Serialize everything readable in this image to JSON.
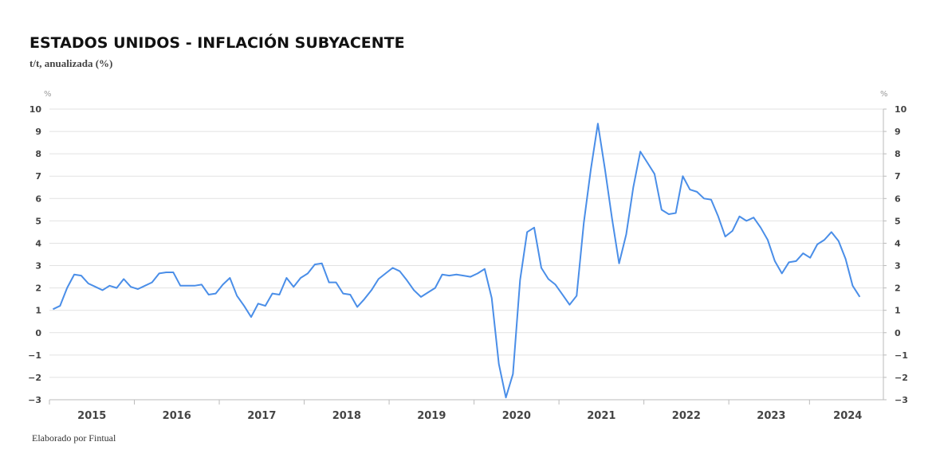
{
  "chart_data": {
    "type": "line",
    "title": "ESTADOS UNIDOS - INFLACIÓN SUBYACENTE",
    "subtitle": "t/t, anualizada (%)",
    "source": "Elaborado por Fintual",
    "ylabel": "%",
    "y2label": "%",
    "xlim": [
      2015,
      2024.82
    ],
    "xticks": [
      {
        "value": 2015.5,
        "label": "2015"
      },
      {
        "value": 2016.5,
        "label": "2016"
      },
      {
        "value": 2017.5,
        "label": "2017"
      },
      {
        "value": 2018.5,
        "label": "2018"
      },
      {
        "value": 2019.5,
        "label": "2019"
      },
      {
        "value": 2020.5,
        "label": "2020"
      },
      {
        "value": 2021.5,
        "label": "2021"
      },
      {
        "value": 2022.5,
        "label": "2022"
      },
      {
        "value": 2023.5,
        "label": "2023"
      },
      {
        "value": 2024.4,
        "label": "2024"
      }
    ],
    "ylim": [
      -3,
      10
    ],
    "yticks": [
      {
        "value": -3,
        "label": "−3"
      },
      {
        "value": -2,
        "label": "−2"
      },
      {
        "value": -1,
        "label": "−1"
      },
      0,
      1,
      2,
      3,
      4,
      5,
      6,
      7,
      8,
      9,
      10
    ],
    "y2lim": [
      -3,
      10
    ],
    "y2ticks": [
      {
        "value": -3,
        "label": "−3"
      },
      {
        "value": -2,
        "label": "−2"
      },
      {
        "value": -1,
        "label": "−1"
      },
      0,
      1,
      2,
      3,
      4,
      5,
      6,
      7,
      8,
      9,
      10
    ],
    "grid": true,
    "x": [
      2015.042,
      2015.125,
      2015.208,
      2015.292,
      2015.375,
      2015.458,
      2015.542,
      2015.625,
      2015.708,
      2015.792,
      2015.875,
      2015.958,
      2016.042,
      2016.125,
      2016.208,
      2016.292,
      2016.375,
      2016.458,
      2016.542,
      2016.625,
      2016.708,
      2016.792,
      2016.875,
      2016.958,
      2017.042,
      2017.125,
      2017.208,
      2017.292,
      2017.375,
      2017.458,
      2017.542,
      2017.625,
      2017.708,
      2017.792,
      2017.875,
      2017.958,
      2018.042,
      2018.125,
      2018.208,
      2018.292,
      2018.375,
      2018.458,
      2018.542,
      2018.625,
      2018.708,
      2018.792,
      2018.875,
      2018.958,
      2019.042,
      2019.125,
      2019.208,
      2019.292,
      2019.375,
      2019.458,
      2019.542,
      2019.625,
      2019.708,
      2019.792,
      2019.875,
      2019.958,
      2020.042,
      2020.125,
      2020.208,
      2020.292,
      2020.375,
      2020.458,
      2020.542,
      2020.625,
      2020.708,
      2020.792,
      2020.875,
      2020.958,
      2021.042,
      2021.125,
      2021.208,
      2021.292,
      2021.375,
      2021.458,
      2021.542,
      2021.625,
      2021.708,
      2021.792,
      2021.875,
      2021.958,
      2022.042,
      2022.125,
      2022.208,
      2022.292,
      2022.375,
      2022.458,
      2022.542,
      2022.625,
      2022.708,
      2022.792,
      2022.875,
      2022.958,
      2023.042,
      2023.125,
      2023.208,
      2023.292,
      2023.375,
      2023.458,
      2023.542,
      2023.625,
      2023.708,
      2023.792,
      2023.875,
      2023.958,
      2024.042,
      2024.125,
      2024.208,
      2024.292,
      2024.375,
      2024.458,
      2024.542
    ],
    "series": [
      {
        "color": "#4a8ee8",
        "values": [
          1.05,
          1.2,
          2.0,
          2.6,
          2.55,
          2.2,
          2.05,
          1.9,
          2.1,
          2.0,
          2.4,
          2.05,
          1.95,
          2.1,
          2.25,
          2.65,
          2.7,
          2.7,
          2.1,
          2.1,
          2.1,
          2.15,
          1.7,
          1.75,
          2.15,
          2.45,
          1.65,
          1.2,
          0.7,
          1.3,
          1.2,
          1.75,
          1.7,
          2.45,
          2.05,
          2.45,
          2.65,
          3.05,
          3.1,
          2.25,
          2.25,
          1.75,
          1.7,
          1.15,
          1.5,
          1.9,
          2.4,
          2.65,
          2.9,
          2.75,
          2.35,
          1.9,
          1.6,
          1.8,
          2.0,
          2.6,
          2.55,
          2.6,
          2.55,
          2.5,
          2.65,
          2.85,
          1.55,
          -1.4,
          -2.9,
          -1.85,
          2.35,
          4.5,
          4.7,
          2.9,
          2.4,
          2.15,
          1.7,
          1.25,
          1.65,
          4.9,
          7.3,
          9.35,
          7.3,
          5.1,
          3.1,
          4.4,
          6.5,
          8.1,
          7.6,
          7.1,
          5.5,
          5.3,
          5.35,
          7.0,
          6.4,
          6.3,
          6.0,
          5.95,
          5.2,
          4.3,
          4.55,
          5.2,
          5.0,
          5.15,
          4.7,
          4.15,
          3.2,
          2.65,
          3.15,
          3.2,
          3.55,
          3.35,
          3.95,
          4.15,
          4.5,
          4.1,
          3.3,
          2.1,
          1.6
        ]
      }
    ]
  }
}
